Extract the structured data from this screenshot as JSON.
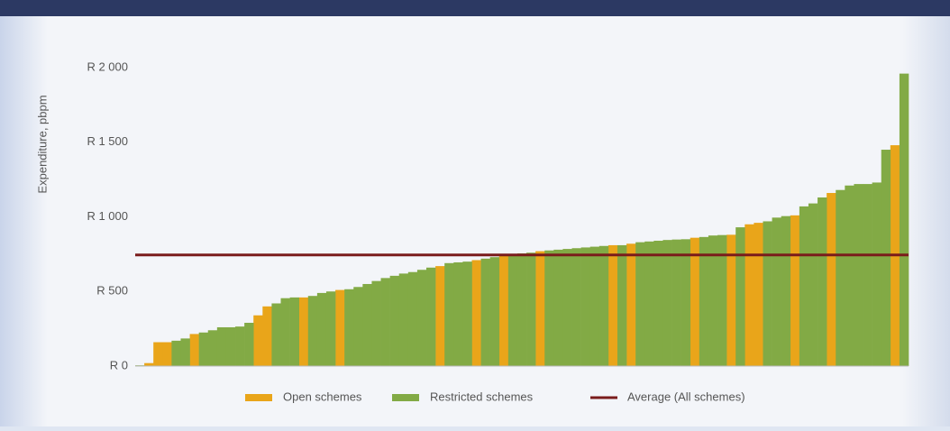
{
  "chart_data": {
    "type": "bar",
    "y_label": "Expenditure, pbpm",
    "categories": [
      null,
      null,
      null,
      null,
      null,
      null,
      null,
      null,
      null,
      null,
      null,
      null,
      null,
      null,
      null,
      null,
      null,
      null,
      null,
      null,
      null,
      null,
      null,
      null,
      null,
      null,
      null,
      null,
      null,
      null,
      null,
      null,
      null,
      null,
      null,
      null,
      null,
      null,
      null,
      null,
      null,
      null,
      null,
      null,
      null,
      null,
      null,
      null,
      null,
      null,
      null,
      null,
      null,
      null,
      null,
      null,
      null,
      null,
      null,
      null,
      null,
      null,
      null,
      null,
      null,
      null,
      null,
      null,
      null,
      null,
      null,
      null,
      null,
      null,
      null,
      null,
      null,
      null,
      null,
      null,
      null,
      null,
      null,
      null,
      null
    ],
    "series": [
      {
        "name": "Open schemes",
        "color": "#e9a51a",
        "values": [
          null,
          20,
          160,
          160,
          null,
          null,
          215,
          null,
          null,
          null,
          null,
          null,
          null,
          340,
          400,
          null,
          null,
          null,
          460,
          null,
          null,
          null,
          510,
          null,
          null,
          null,
          null,
          null,
          null,
          null,
          null,
          null,
          null,
          670,
          null,
          null,
          null,
          710,
          null,
          null,
          745,
          null,
          null,
          null,
          770,
          null,
          null,
          null,
          null,
          null,
          null,
          null,
          810,
          null,
          820,
          null,
          null,
          null,
          null,
          null,
          null,
          860,
          null,
          null,
          null,
          880,
          null,
          950,
          960,
          null,
          null,
          null,
          1010,
          null,
          null,
          null,
          1160,
          null,
          null,
          null,
          null,
          null,
          null,
          1480,
          null
        ]
      },
      {
        "name": "Restricted schemes",
        "color": "#82aa45",
        "values": [
          5,
          null,
          null,
          null,
          170,
          185,
          null,
          225,
          240,
          260,
          260,
          265,
          290,
          null,
          null,
          420,
          455,
          460,
          null,
          470,
          490,
          500,
          null,
          515,
          530,
          550,
          570,
          590,
          605,
          620,
          630,
          645,
          660,
          null,
          690,
          695,
          700,
          null,
          720,
          730,
          null,
          750,
          755,
          760,
          null,
          775,
          780,
          785,
          790,
          795,
          800,
          805,
          null,
          810,
          null,
          830,
          835,
          840,
          845,
          848,
          850,
          null,
          865,
          875,
          878,
          null,
          930,
          null,
          null,
          970,
          995,
          1005,
          null,
          1070,
          1090,
          1130,
          null,
          1180,
          1210,
          1220,
          1220,
          1230,
          1450,
          null,
          1960
        ]
      }
    ],
    "average": {
      "name": "Average (All schemes)",
      "color": "#7a1c1c",
      "value": 745
    },
    "ylim": [
      0,
      2000
    ],
    "yticks": [
      {
        "value": 0,
        "label": "R 0"
      },
      {
        "value": 500,
        "label": "R 500"
      },
      {
        "value": 1000,
        "label": "R 1 000"
      },
      {
        "value": 1500,
        "label": "R 1 500"
      },
      {
        "value": 2000,
        "label": "R 2 000"
      }
    ],
    "grid": false
  }
}
